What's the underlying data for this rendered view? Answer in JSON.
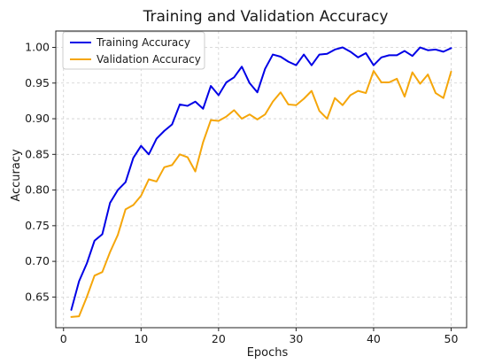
{
  "chart_data": {
    "type": "line",
    "title": "Training and Validation Accuracy",
    "xlabel": "Epochs",
    "ylabel": "Accuracy",
    "xlim": [
      -1,
      52
    ],
    "ylim": [
      0.607,
      1.023
    ],
    "xticks": [
      0,
      10,
      20,
      30,
      40,
      50
    ],
    "yticks": [
      0.65,
      0.7,
      0.75,
      0.8,
      0.85,
      0.9,
      0.95,
      1.0
    ],
    "xtick_labels": [
      "0",
      "10",
      "20",
      "30",
      "40",
      "50"
    ],
    "ytick_labels": [
      "0.65",
      "0.70",
      "0.75",
      "0.80",
      "0.85",
      "0.90",
      "0.95",
      "1.00"
    ],
    "grid": true,
    "legend_position": "top-left",
    "x": [
      1,
      2,
      3,
      4,
      5,
      6,
      7,
      8,
      9,
      10,
      11,
      12,
      13,
      14,
      15,
      16,
      17,
      18,
      19,
      20,
      21,
      22,
      23,
      24,
      25,
      26,
      27,
      28,
      29,
      30,
      31,
      32,
      33,
      34,
      35,
      36,
      37,
      38,
      39,
      40,
      41,
      42,
      43,
      44,
      45,
      46,
      47,
      48,
      49,
      50
    ],
    "series": [
      {
        "name": "Training Accuracy",
        "color": "#0000e6",
        "values": [
          0.632,
          0.672,
          0.697,
          0.729,
          0.738,
          0.782,
          0.8,
          0.811,
          0.845,
          0.862,
          0.85,
          0.872,
          0.883,
          0.892,
          0.92,
          0.918,
          0.924,
          0.914,
          0.946,
          0.933,
          0.951,
          0.958,
          0.973,
          0.95,
          0.937,
          0.97,
          0.99,
          0.987,
          0.98,
          0.975,
          0.99,
          0.975,
          0.99,
          0.991,
          0.997,
          1.0,
          0.994,
          0.986,
          0.992,
          0.975,
          0.986,
          0.989,
          0.989,
          0.995,
          0.988,
          1.0,
          0.996,
          0.997,
          0.994,
          0.999
        ]
      },
      {
        "name": "Validation Accuracy",
        "color": "#f5a60a",
        "values": [
          0.622,
          0.623,
          0.65,
          0.68,
          0.685,
          0.713,
          0.737,
          0.773,
          0.779,
          0.792,
          0.815,
          0.812,
          0.832,
          0.835,
          0.85,
          0.846,
          0.826,
          0.867,
          0.898,
          0.897,
          0.903,
          0.912,
          0.9,
          0.906,
          0.899,
          0.906,
          0.924,
          0.937,
          0.92,
          0.919,
          0.928,
          0.939,
          0.911,
          0.9,
          0.929,
          0.919,
          0.933,
          0.939,
          0.936,
          0.967,
          0.951,
          0.951,
          0.956,
          0.931,
          0.965,
          0.949,
          0.962,
          0.936,
          0.929,
          0.966
        ]
      }
    ]
  }
}
